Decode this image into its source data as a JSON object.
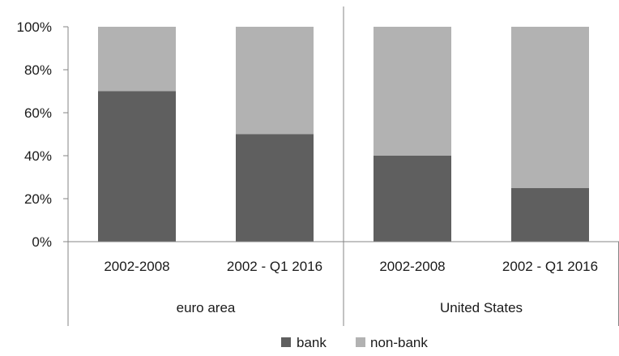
{
  "chart_data": {
    "type": "bar",
    "stacked": true,
    "percent": true,
    "title": "",
    "xlabel": "",
    "ylabel": "",
    "ylim": [
      0,
      100
    ],
    "yticks": [
      "0%",
      "20%",
      "40%",
      "60%",
      "80%",
      "100%"
    ],
    "groups": [
      {
        "label": "euro area",
        "categories": [
          "2002-2008",
          "2002 - Q1 2016"
        ]
      },
      {
        "label": "United States",
        "categories": [
          "2002-2008",
          "2002 - Q1 2016"
        ]
      }
    ],
    "categories": [
      "2002-2008",
      "2002 - Q1 2016",
      "2002-2008",
      "2002 - Q1 2016"
    ],
    "series": [
      {
        "name": "bank",
        "color": "#5f5f5f",
        "values": [
          70,
          50,
          40,
          25
        ]
      },
      {
        "name": "non-bank",
        "color": "#b2b2b2",
        "values": [
          30,
          50,
          60,
          75
        ]
      }
    ],
    "grid": false,
    "legend_position": "bottom"
  }
}
